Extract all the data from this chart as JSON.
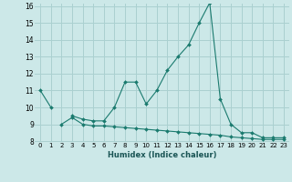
{
  "xlabel": "Humidex (Indice chaleur)",
  "background_color": "#cce8e8",
  "grid_color": "#aad0d0",
  "line_color": "#1a7a6e",
  "x_values": [
    0,
    1,
    2,
    3,
    4,
    5,
    6,
    7,
    8,
    9,
    10,
    11,
    12,
    13,
    14,
    15,
    16,
    17,
    18,
    19,
    20,
    21,
    22,
    23
  ],
  "line1_y": [
    11,
    10,
    null,
    9.5,
    9.3,
    9.2,
    9.2,
    10.0,
    11.5,
    11.5,
    10.2,
    11.0,
    12.2,
    13.0,
    13.7,
    15.0,
    16.2,
    10.5,
    9.0,
    8.5,
    8.5,
    8.2,
    8.2,
    8.2
  ],
  "line2_y": [
    null,
    null,
    9.0,
    9.4,
    9.0,
    8.9,
    8.9,
    8.85,
    8.8,
    8.75,
    8.7,
    8.65,
    8.6,
    8.55,
    8.5,
    8.45,
    8.4,
    8.35,
    8.25,
    8.2,
    8.15,
    8.1,
    8.1,
    8.1
  ],
  "ylim_min": 8,
  "ylim_max": 16,
  "xlim_min": -0.5,
  "xlim_max": 23.5,
  "yticks": [
    8,
    9,
    10,
    11,
    12,
    13,
    14,
    15,
    16
  ],
  "ylabel_fontsize": 6,
  "xlabel_fontsize": 6,
  "tick_fontsize": 5,
  "marker": "D",
  "markersize": 2,
  "linewidth": 0.8
}
